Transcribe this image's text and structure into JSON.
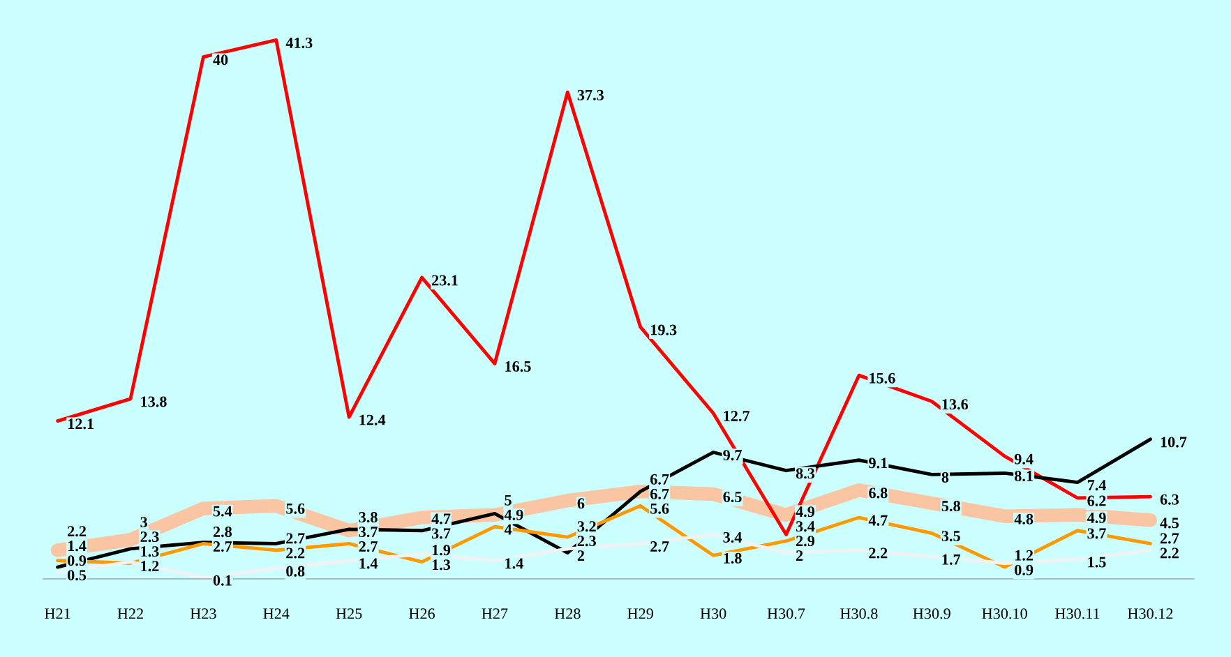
{
  "chart_data": {
    "type": "line",
    "categories": [
      "H21",
      "H22",
      "H23",
      "H24",
      "H25",
      "H26",
      "H27",
      "H28",
      "H29",
      "H30",
      "H30.7",
      "H30.8",
      "H30.9",
      "H30.10",
      "H30.11",
      "H30.12"
    ],
    "series": [
      {
        "color": "#ff0000",
        "values": [
          12.1,
          13.8,
          40,
          41.3,
          12.4,
          23.1,
          16.5,
          37.3,
          19.3,
          12.7,
          3.4,
          15.6,
          13.6,
          9.4,
          6.2,
          6.3
        ]
      },
      {
        "color": "#000000",
        "values": [
          0.9,
          2.3,
          2.8,
          2.7,
          3.8,
          3.7,
          5,
          2,
          6.7,
          9.7,
          8.3,
          9.1,
          8,
          8.1,
          7.4,
          10.7
        ]
      },
      {
        "color": "#fac5a2",
        "values": [
          2.2,
          3,
          5.4,
          5.6,
          3.7,
          4.7,
          4.9,
          6,
          6.7,
          6.5,
          4.9,
          6.8,
          5.8,
          4.8,
          4.9,
          4.5
        ]
      },
      {
        "color": "#ff9900",
        "values": [
          1.4,
          1.2,
          2.7,
          2.2,
          2.7,
          1.3,
          4,
          3.2,
          5.6,
          1.8,
          2.9,
          4.7,
          3.5,
          0.9,
          3.7,
          2.7
        ]
      },
      {
        "color": "#f2f2f2",
        "values": [
          0.5,
          1.3,
          0.1,
          0.8,
          1.4,
          1.9,
          1.4,
          2.3,
          2.7,
          3.4,
          2,
          2.2,
          1.7,
          1.2,
          1.5,
          2.2
        ]
      }
    ],
    "data_labels": true,
    "grid": false,
    "legend": false,
    "marker": "none",
    "line_style": "solid"
  }
}
